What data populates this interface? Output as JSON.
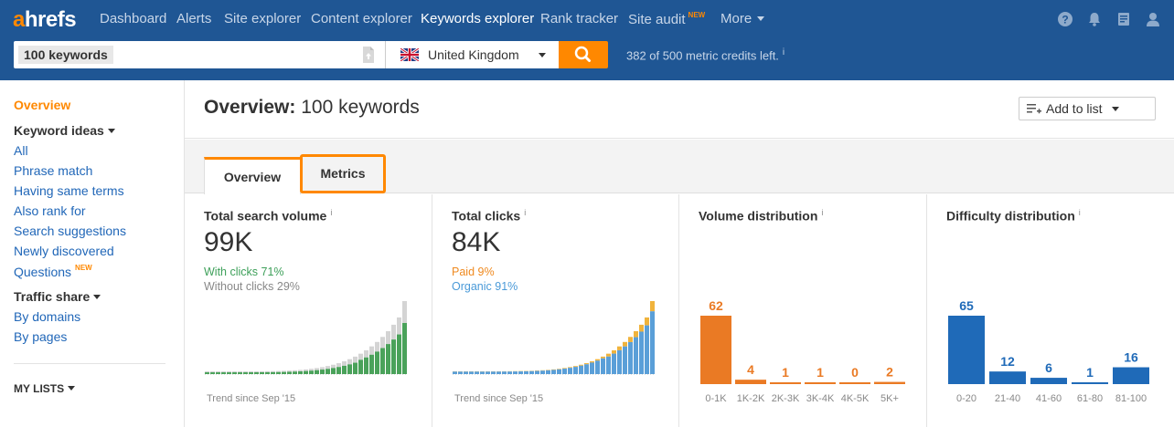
{
  "topnav": {
    "logo_a": "a",
    "logo_rest": "hrefs",
    "items": [
      {
        "label": "Dashboard"
      },
      {
        "label": "Alerts"
      },
      {
        "label": "Site explorer"
      },
      {
        "label": "Content explorer"
      },
      {
        "label": "Keywords explorer"
      },
      {
        "label": "Rank tracker"
      },
      {
        "label": "Site audit"
      },
      {
        "label": "More"
      }
    ],
    "site_audit_badge": "NEW",
    "icons": [
      "help-icon",
      "bell-icon",
      "book-icon",
      "user-icon"
    ]
  },
  "search": {
    "keywords_value": "100 keywords",
    "country": "United Kingdom",
    "credits_text": "382 of 500 metric credits left.",
    "credits_info": "i"
  },
  "sidebar": {
    "overview": "Overview",
    "keyword_ideas": "Keyword ideas",
    "ideas": [
      "All",
      "Phrase match",
      "Having same terms",
      "Also rank for",
      "Search suggestions",
      "Newly discovered",
      "Questions"
    ],
    "questions_badge": "NEW",
    "traffic_share": "Traffic share",
    "traffic": [
      "By domains",
      "By pages"
    ],
    "my_lists": "MY LISTS"
  },
  "header": {
    "title_bold": "Overview:",
    "title_rest": "100 keywords",
    "add_to_list": "Add to list"
  },
  "tabs": [
    {
      "label": "Overview",
      "active": true
    },
    {
      "label": "Metrics",
      "highlighted": true
    }
  ],
  "cards": {
    "search_volume": {
      "title": "Total search volume",
      "info": "i",
      "value": "99K",
      "line1": "With clicks 71%",
      "line2": "Without clicks 29%",
      "trend": "Trend since Sep '15",
      "colors": {
        "primary": "#4aa25a",
        "secondary": "#d4d4d4"
      }
    },
    "clicks": {
      "title": "Total clicks",
      "info": "i",
      "value": "84K",
      "line1": "Paid 9%",
      "line2": "Organic 91%",
      "trend": "Trend since Sep '15",
      "colors": {
        "primary": "#5a9fd8",
        "secondary": "#f0b33c"
      }
    },
    "volume_distribution": {
      "title": "Volume distribution",
      "info": "i"
    },
    "difficulty_distribution": {
      "title": "Difficulty distribution",
      "info": "i"
    }
  },
  "chart_data": [
    {
      "type": "bar",
      "title": "Volume distribution",
      "categories": [
        "0-1K",
        "1K-2K",
        "2K-3K",
        "3K-4K",
        "4K-5K",
        "5K+"
      ],
      "values": [
        62,
        4,
        1,
        1,
        0,
        2
      ],
      "color": "#ea7a24"
    },
    {
      "type": "bar",
      "title": "Difficulty distribution",
      "categories": [
        "0-20",
        "21-40",
        "41-60",
        "61-80",
        "81-100"
      ],
      "values": [
        65,
        12,
        6,
        1,
        16
      ],
      "color": "#1f6ab8"
    }
  ]
}
